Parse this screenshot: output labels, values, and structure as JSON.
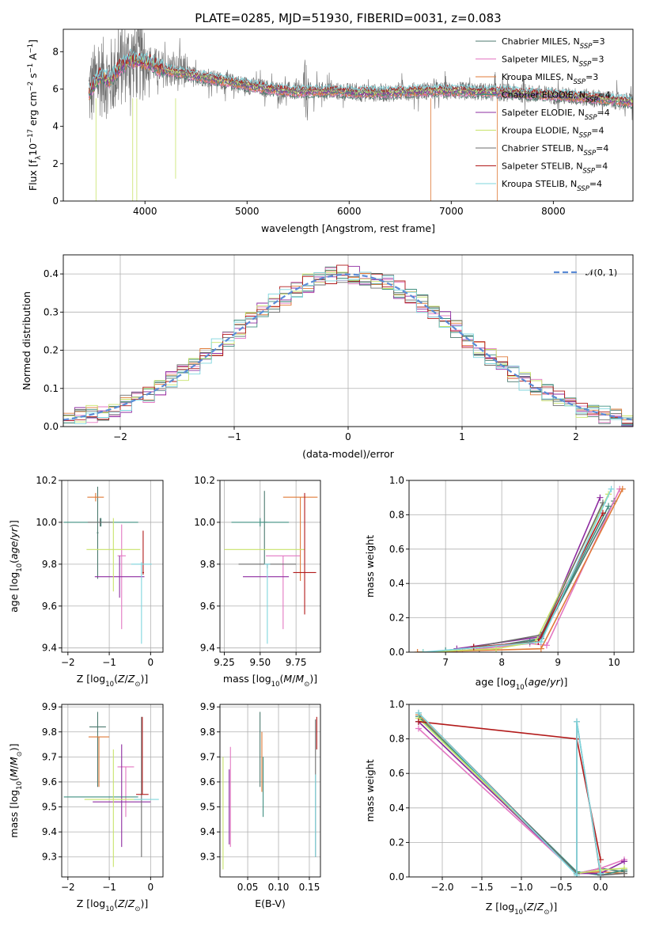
{
  "figure_title": "PLATE=0285, MJD=51930, FIBERID=0031, z=0.083",
  "series": [
    {
      "name": "Chabrier MILES",
      "nssp": "3",
      "color": "#4c7a6f"
    },
    {
      "name": "Salpeter MILES",
      "nssp": "3",
      "color": "#e377c2"
    },
    {
      "name": "Kroupa MILES",
      "nssp": "3",
      "color": "#e07b39"
    },
    {
      "name": "Chabrier ELODIE",
      "nssp": "4",
      "color": "#3f8f80"
    },
    {
      "name": "Salpeter ELODIE",
      "nssp": "4",
      "color": "#8e2ca0"
    },
    {
      "name": "Kroupa ELODIE",
      "nssp": "4",
      "color": "#c8e36a"
    },
    {
      "name": "Chabrier STELIB",
      "nssp": "4",
      "color": "#6e6e6e"
    },
    {
      "name": "Salpeter STELIB",
      "nssp": "4",
      "color": "#b21a1a"
    },
    {
      "name": "Kroupa STELIB",
      "nssp": "4",
      "color": "#7fd6de"
    }
  ],
  "chart_data": [
    {
      "id": "spectrum",
      "type": "line",
      "xlabel": "wavelength [Angstrom, rest frame]",
      "ylabel_parts": {
        "base": "Flux [f",
        "sub": "λ",
        "mid": "10",
        "sup1": "−17",
        "rest1": " erg cm",
        "sup2": "−2",
        "rest2": " s",
        "sup3": "−1",
        "rest3": " A",
        "sup4": "−1",
        "end": "]"
      },
      "xlim": [
        3200,
        8780
      ],
      "ylim": [
        0,
        9.2
      ],
      "xticks": [
        4000,
        5000,
        6000,
        7000,
        8000
      ],
      "yticks": [
        0,
        2,
        4,
        6,
        8
      ],
      "legend_position": "upper-right",
      "legend_suffix_base": "N",
      "legend_suffix_sub": "SSP",
      "data_start": 3450,
      "model_approx": {
        "x": [
          3450,
          3550,
          3650,
          3750,
          3850,
          3950,
          4050,
          4150,
          4300,
          4500,
          4700,
          4900,
          5100,
          5300,
          5500,
          5800,
          6100,
          6400,
          6700,
          7000,
          7300,
          7600,
          7900,
          8200,
          8500,
          8780
        ],
        "y": [
          5.8,
          6.7,
          6.5,
          7.1,
          7.6,
          7.5,
          7.4,
          7.1,
          6.9,
          6.7,
          6.5,
          6.3,
          6.1,
          5.95,
          5.85,
          5.9,
          5.8,
          5.8,
          5.9,
          5.9,
          5.85,
          5.8,
          5.7,
          5.6,
          5.45,
          5.3
        ]
      }
    },
    {
      "id": "residuals",
      "type": "histogram",
      "xlabel": "(data-model)/error",
      "ylabel": "Normed distribution",
      "xlim": [
        -2.5,
        2.5
      ],
      "ylim": [
        0,
        0.45
      ],
      "xticks": [
        -2,
        -1,
        0,
        1,
        2
      ],
      "yticks": [
        0.0,
        0.1,
        0.2,
        0.3,
        0.4
      ],
      "xtick_labels": [
        "−2",
        "−1",
        "0",
        "1",
        "2"
      ],
      "yticks_labels": [
        "0.0",
        "0.1",
        "0.2",
        "0.3",
        "0.4"
      ],
      "bin_width": 0.1,
      "legend": "𝒩(0, 1)",
      "legend_position": "upper-right",
      "gaussian": {
        "mu": 0,
        "sigma": 1
      }
    },
    {
      "id": "age-vs-Z",
      "type": "errorbar",
      "xlabel_base": "Z [log",
      "xlabel_sub": "10",
      "xlabel_rest": "(Z/Z",
      "xlabel_sub2": "⊙",
      "xlabel_end": ")]",
      "ylabel": "age  [log10(age/yr)]",
      "xlim": [
        -2.15,
        0.3
      ],
      "ylim": [
        9.38,
        10.2
      ],
      "xticks": [
        -2,
        -1,
        0
      ],
      "xtick_labels": [
        "−2",
        "−1",
        "0"
      ],
      "yticks": [
        9.4,
        9.6,
        9.8,
        10.0,
        10.2
      ],
      "yticks_labels": [
        "9.4",
        "9.6",
        "9.8",
        "10.0",
        "10.2"
      ],
      "points": [
        {
          "s": 0,
          "x": -1.28,
          "y": 9.95,
          "xerr": 0.02,
          "yerr": [
            0.22,
            0.22
          ]
        },
        {
          "s": 1,
          "x": -0.7,
          "y": 9.84,
          "xerr": 0.1,
          "yerr": [
            0.35,
            0.15
          ]
        },
        {
          "s": 2,
          "x": -1.33,
          "y": 10.12,
          "xerr": 0.2,
          "yerr": [
            0.02,
            0.02
          ]
        },
        {
          "s": 3,
          "x": -1.2,
          "y": 10.0,
          "xerr": 0.9,
          "yerr": [
            0.02,
            0.02
          ]
        },
        {
          "s": 4,
          "x": -0.75,
          "y": 9.74,
          "xerr": 0.6,
          "yerr": [
            0.1,
            0.1
          ]
        },
        {
          "s": 5,
          "x": -0.9,
          "y": 9.87,
          "xerr": 0.65,
          "yerr": [
            0.2,
            0.15
          ]
        },
        {
          "s": 6,
          "x": -1.22,
          "y": 10.0,
          "xerr": 0.3,
          "yerr": [
            0.02,
            0.02
          ]
        },
        {
          "s": 7,
          "x": -0.18,
          "y": 9.76,
          "xerr": 0.02,
          "yerr": [
            0.01,
            0.2
          ]
        },
        {
          "s": 8,
          "x": -0.22,
          "y": 9.8,
          "xerr": 0.25,
          "yerr": [
            0.38,
            0.01
          ]
        }
      ]
    },
    {
      "id": "age-vs-mass",
      "type": "errorbar",
      "xlabel_base": "mass [log",
      "xlabel_sub": "10",
      "xlabel_rest": "(M/M",
      "xlabel_sub2": "⊙",
      "xlabel_end": ")]",
      "xlim": [
        9.22,
        9.92
      ],
      "ylim": [
        9.38,
        10.2
      ],
      "xticks": [
        9.25,
        9.5,
        9.75
      ],
      "xtick_labels": [
        "9.25",
        "9.50",
        "9.75"
      ],
      "yticks": [
        9.4,
        9.6,
        9.8,
        10.0,
        10.2
      ],
      "yticks_labels": [
        "9.4",
        "9.6",
        "9.8",
        "10.0",
        "10.2"
      ],
      "points": [
        {
          "s": 0,
          "x": 9.53,
          "y": 10.0,
          "xerr": 0.02,
          "yerr": [
            0.2,
            0.15
          ]
        },
        {
          "s": 1,
          "x": 9.66,
          "y": 9.84,
          "xerr": 0.12,
          "yerr": [
            0.35,
            0.0
          ]
        },
        {
          "s": 2,
          "x": 9.78,
          "y": 10.12,
          "xerr": 0.12,
          "yerr": [
            0.4,
            0.0
          ]
        },
        {
          "s": 3,
          "x": 9.5,
          "y": 10.0,
          "xerr": 0.2,
          "yerr": [
            0.02,
            0.02
          ]
        },
        {
          "s": 4,
          "x": 9.54,
          "y": 9.74,
          "xerr": 0.16,
          "yerr": [
            0.0,
            0.0
          ]
        },
        {
          "s": 5,
          "x": 9.53,
          "y": 9.87,
          "xerr": 0.28,
          "yerr": [
            0.0,
            0.0
          ]
        },
        {
          "s": 6,
          "x": 9.55,
          "y": 9.8,
          "xerr": 0.2,
          "yerr": [
            0.02,
            0.0
          ]
        },
        {
          "s": 7,
          "x": 9.81,
          "y": 9.76,
          "xerr": 0.08,
          "yerr": [
            0.2,
            0.38
          ]
        },
        {
          "s": 8,
          "x": 9.55,
          "y": 9.8,
          "xerr": 0.02,
          "yerr": [
            0.38,
            0.0
          ]
        }
      ]
    },
    {
      "id": "weight-vs-age",
      "type": "line",
      "xlabel": "age  [log10(age/yr)]",
      "ylabel": "mass weight",
      "xlim": [
        6.35,
        10.35
      ],
      "ylim": [
        0,
        1.0
      ],
      "xticks": [
        7,
        8,
        9,
        10
      ],
      "yticks": [
        0.0,
        0.2,
        0.4,
        0.6,
        0.8,
        1.0
      ],
      "yticks_labels": [
        "0.0",
        "0.2",
        "0.4",
        "0.6",
        "0.8",
        "1.0"
      ],
      "lines": [
        {
          "s": 0,
          "x": [
            7.6,
            8.7,
            10.0
          ],
          "y": [
            0.02,
            0.08,
            0.88
          ]
        },
        {
          "s": 1,
          "x": [
            7.3,
            8.5,
            8.8,
            10.1
          ],
          "y": [
            0.01,
            0.05,
            0.04,
            0.95
          ]
        },
        {
          "s": 2,
          "x": [
            6.5,
            8.7,
            10.15
          ],
          "y": [
            0.0,
            0.02,
            0.95
          ]
        },
        {
          "s": 3,
          "x": [
            7.0,
            8.5,
            8.7,
            9.9
          ],
          "y": [
            0.01,
            0.06,
            0.08,
            0.85
          ]
        },
        {
          "s": 4,
          "x": [
            7.2,
            8.7,
            9.75
          ],
          "y": [
            0.02,
            0.09,
            0.9
          ]
        },
        {
          "s": 5,
          "x": [
            6.6,
            7.9,
            8.6,
            9.9
          ],
          "y": [
            0.0,
            0.02,
            0.06,
            0.92
          ]
        },
        {
          "s": 6,
          "x": [
            7.5,
            8.7,
            9.8
          ],
          "y": [
            0.03,
            0.1,
            0.87
          ]
        },
        {
          "s": 7,
          "x": [
            7.5,
            8.65,
            9.8
          ],
          "y": [
            0.03,
            0.06,
            0.81
          ]
        },
        {
          "s": 8,
          "x": [
            6.6,
            8.7,
            9.95
          ],
          "y": [
            0.0,
            0.06,
            0.95
          ]
        }
      ]
    },
    {
      "id": "mass-vs-Z",
      "type": "errorbar",
      "xlabel_base": "Z [log",
      "xlabel_sub": "10",
      "xlabel_rest": "(Z/Z",
      "xlabel_sub2": "⊙",
      "xlabel_end": ")]",
      "ylabel": "mass [log10(M/M⊙)]",
      "xlim": [
        -2.15,
        0.3
      ],
      "ylim": [
        9.22,
        9.91
      ],
      "xticks": [
        -2,
        -1,
        0
      ],
      "xtick_labels": [
        "−2",
        "−1",
        "0"
      ],
      "yticks": [
        9.3,
        9.4,
        9.5,
        9.6,
        9.7,
        9.8,
        9.9
      ],
      "yticks_labels": [
        "9.3",
        "9.4",
        "9.5",
        "9.6",
        "9.7",
        "9.8",
        "9.9"
      ],
      "points": [
        {
          "s": 0,
          "x": -1.28,
          "y": 9.82,
          "xerr": 0.2,
          "yerr": [
            0.24,
            0.06
          ]
        },
        {
          "s": 1,
          "x": -0.6,
          "y": 9.66,
          "xerr": 0.2,
          "yerr": [
            0.2,
            0.0
          ]
        },
        {
          "s": 2,
          "x": -1.25,
          "y": 9.78,
          "xerr": 0.25,
          "yerr": [
            0.2,
            0.0
          ]
        },
        {
          "s": 3,
          "x": -1.2,
          "y": 9.54,
          "xerr": 0.9,
          "yerr": [
            0.0,
            0.0
          ]
        },
        {
          "s": 4,
          "x": -0.7,
          "y": 9.52,
          "xerr": 0.7,
          "yerr": [
            0.18,
            0.23
          ]
        },
        {
          "s": 5,
          "x": -0.9,
          "y": 9.53,
          "xerr": 0.7,
          "yerr": [
            0.27,
            0.2
          ]
        },
        {
          "s": 6,
          "x": -0.22,
          "y": 9.55,
          "xerr": 0.02,
          "yerr": [
            0.25,
            0.31
          ]
        },
        {
          "s": 7,
          "x": -0.2,
          "y": 9.55,
          "xerr": 0.15,
          "yerr": [
            0.0,
            0.31
          ]
        },
        {
          "s": 8,
          "x": -0.1,
          "y": 9.53,
          "xerr": 0.3,
          "yerr": [
            0.0,
            0.0
          ]
        }
      ]
    },
    {
      "id": "mass-vs-ebv",
      "type": "errorbar",
      "xlabel": "E(B-V)",
      "xlim": [
        0.005,
        0.168
      ],
      "ylim": [
        9.22,
        9.91
      ],
      "xticks": [
        0.05,
        0.1,
        0.15
      ],
      "xtick_labels": [
        "0.05",
        "0.10",
        "0.15"
      ],
      "yticks": [
        9.3,
        9.4,
        9.5,
        9.6,
        9.7,
        9.8,
        9.9
      ],
      "yticks_labels": [
        "9.3",
        "9.4",
        "9.5",
        "9.6",
        "9.7",
        "9.8",
        "9.9"
      ],
      "points": [
        {
          "s": 0,
          "x": 0.07,
          "y": 9.82,
          "xerr": 0.0,
          "yerr": [
            0.24,
            0.06
          ]
        },
        {
          "s": 1,
          "x": 0.022,
          "y": 9.62,
          "xerr": 0.0,
          "yerr": [
            0.28,
            0.12
          ]
        },
        {
          "s": 2,
          "x": 0.073,
          "y": 9.7,
          "xerr": 0.0,
          "yerr": [
            0.14,
            0.1
          ]
        },
        {
          "s": 3,
          "x": 0.075,
          "y": 9.6,
          "xerr": 0.0,
          "yerr": [
            0.14,
            0.1
          ]
        },
        {
          "s": 4,
          "x": 0.02,
          "y": 9.55,
          "xerr": 0.0,
          "yerr": [
            0.2,
            0.1
          ]
        },
        {
          "s": 5,
          "x": 0.01,
          "y": 9.45,
          "xerr": 0.0,
          "yerr": [
            0.2,
            0.25
          ]
        },
        {
          "s": 6,
          "x": 0.16,
          "y": 9.55,
          "xerr": 0.0,
          "yerr": [
            0.25,
            0.3
          ]
        },
        {
          "s": 7,
          "x": 0.162,
          "y": 9.78,
          "xerr": 0.0,
          "yerr": [
            0.05,
            0.08
          ]
        },
        {
          "s": 8,
          "x": 0.16,
          "y": 9.53,
          "xerr": 0.0,
          "yerr": [
            0.23,
            0.1
          ]
        }
      ]
    },
    {
      "id": "weight-vs-Z",
      "type": "line",
      "xlabel_base": "Z [log",
      "xlabel_sub": "10",
      "xlabel_rest": "(Z/Z",
      "xlabel_sub2": "⊙",
      "xlabel_end": ")]",
      "ylabel": "mass weight",
      "xlim": [
        -2.42,
        0.42
      ],
      "ylim": [
        0,
        1.0
      ],
      "xticks": [
        -2.0,
        -1.5,
        -1.0,
        -0.5,
        0.0
      ],
      "xtick_labels": [
        "−2.0",
        "−1.5",
        "−1.0",
        "−0.5",
        "0.0"
      ],
      "yticks": [
        0.0,
        0.2,
        0.4,
        0.6,
        0.8,
        1.0
      ],
      "yticks_labels": [
        "0.0",
        "0.2",
        "0.4",
        "0.6",
        "0.8",
        "1.0"
      ],
      "lines": [
        {
          "s": 0,
          "x": [
            -2.3,
            -0.3,
            0.0,
            0.3
          ],
          "y": [
            0.9,
            0.02,
            0.05,
            0.03
          ]
        },
        {
          "s": 1,
          "x": [
            -2.3,
            -0.3,
            0.0,
            0.3
          ],
          "y": [
            0.86,
            0.02,
            0.05,
            0.1
          ]
        },
        {
          "s": 2,
          "x": [
            -2.3,
            -0.3,
            0.0,
            0.3
          ],
          "y": [
            0.94,
            0.02,
            0.03,
            0.02
          ]
        },
        {
          "s": 3,
          "x": [
            -2.3,
            -0.3,
            0.0,
            0.3
          ],
          "y": [
            0.93,
            0.03,
            0.01,
            0.04
          ]
        },
        {
          "s": 4,
          "x": [
            -2.3,
            -0.3,
            0.0,
            0.3
          ],
          "y": [
            0.9,
            0.02,
            0.02,
            0.09
          ]
        },
        {
          "s": 5,
          "x": [
            -2.3,
            -0.3,
            0.0,
            0.3
          ],
          "y": [
            0.92,
            0.02,
            0.04,
            0.05
          ]
        },
        {
          "s": 6,
          "x": [
            -2.3,
            -0.3,
            -0.3,
            0.0,
            0.3
          ],
          "y": [
            0.95,
            0.02,
            0.9,
            0.01,
            0.02
          ]
        },
        {
          "s": 7,
          "x": [
            -2.3,
            -0.3,
            -0.3,
            0.0
          ],
          "y": [
            0.9,
            0.8,
            0.8,
            0.1
          ]
        },
        {
          "s": 8,
          "x": [
            -2.3,
            -0.3,
            -0.3,
            0.0
          ],
          "y": [
            0.95,
            0.01,
            0.9,
            0.02
          ]
        }
      ]
    }
  ]
}
